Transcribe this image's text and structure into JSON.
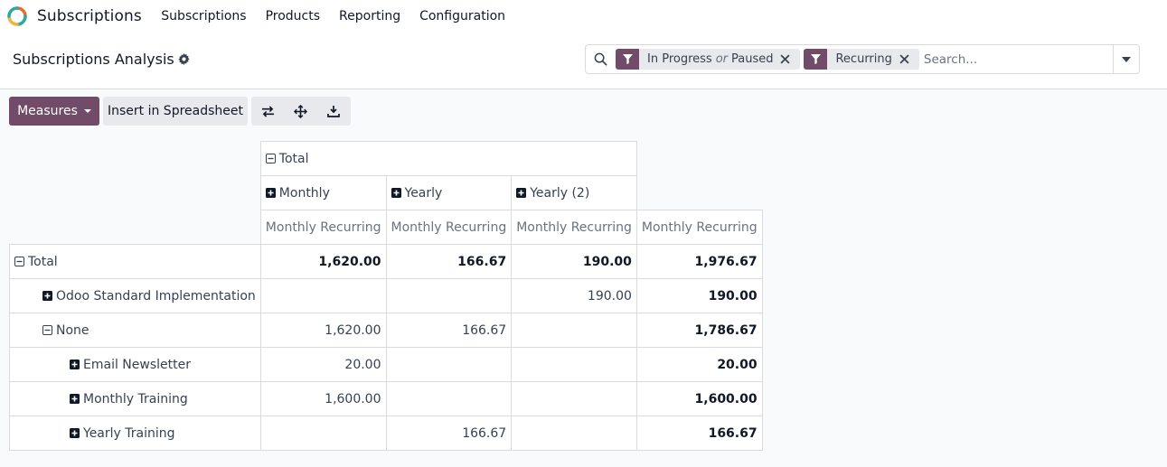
{
  "navbar": {
    "app_name": "Subscriptions",
    "menu": [
      "Subscriptions",
      "Products",
      "Reporting",
      "Configuration"
    ]
  },
  "control_panel": {
    "title": "Subscriptions Analysis",
    "search": {
      "facets": [
        {
          "values": [
            "In Progress",
            "Paused"
          ],
          "separator": "or"
        },
        {
          "values": [
            "Recurring"
          ]
        }
      ],
      "placeholder": "Search..."
    }
  },
  "toolbar": {
    "measures_label": "Measures",
    "spreadsheet_label": "Insert in Spreadsheet",
    "icons": [
      "flip-axis-icon",
      "expand-all-icon",
      "download-icon"
    ]
  },
  "pivot": {
    "col_total_label": "Total",
    "col_groups": [
      "Monthly",
      "Yearly",
      "Yearly (2)"
    ],
    "measure_label": "Monthly Recurring",
    "rows": [
      {
        "label": "Total",
        "level": 0,
        "expanded": true,
        "values": [
          "1,620.00",
          "166.67",
          "190.00",
          "1,976.67"
        ],
        "bold": true
      },
      {
        "label": "Odoo Standard Implementation",
        "level": 1,
        "expanded": false,
        "values": [
          "",
          "",
          "190.00",
          "190.00"
        ]
      },
      {
        "label": "None",
        "level": 1,
        "expanded": true,
        "values": [
          "1,620.00",
          "166.67",
          "",
          "1,786.67"
        ]
      },
      {
        "label": "Email Newsletter",
        "level": 2,
        "expanded": false,
        "values": [
          "20.00",
          "",
          "",
          "20.00"
        ]
      },
      {
        "label": "Monthly Training",
        "level": 2,
        "expanded": false,
        "values": [
          "1,600.00",
          "",
          "",
          "1,600.00"
        ]
      },
      {
        "label": "Yearly Training",
        "level": 2,
        "expanded": false,
        "values": [
          "",
          "166.67",
          "",
          "166.67"
        ]
      }
    ]
  },
  "colors": {
    "primary": "#714b67",
    "facet_bg": "#e7e9ed",
    "border": "#d8dadd"
  }
}
